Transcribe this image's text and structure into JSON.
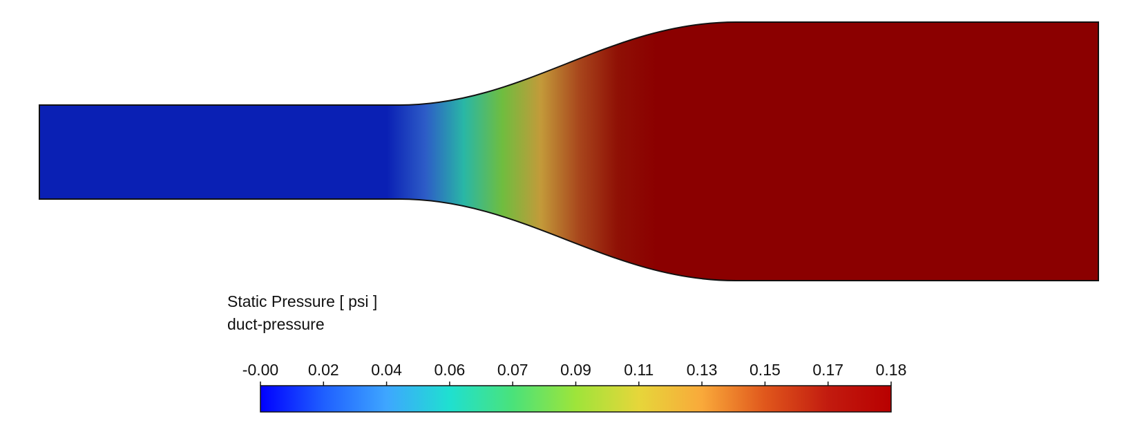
{
  "legend": {
    "title": "Static Pressure [ psi ]",
    "subtitle": "duct-pressure",
    "ticks": [
      "-0.00",
      "0.02",
      "0.04",
      "0.06",
      "0.07",
      "0.09",
      "0.11",
      "0.13",
      "0.15",
      "0.17",
      "0.18"
    ],
    "colormap": [
      "#0000ff",
      "#1f5fff",
      "#3ea6ff",
      "#1fe0d0",
      "#4ae27a",
      "#9ee43a",
      "#e6d63a",
      "#f9a93a",
      "#e0571c",
      "#c21b0f",
      "#b80000"
    ]
  },
  "field": {
    "inlet_color": "#0a20b4",
    "outlet_color": "#8b0000",
    "transition_colors": [
      "#0a20b4",
      "#2d5cc7",
      "#29b7a6",
      "#6fbd3f",
      "#c39a3a",
      "#a8461c",
      "#8f1005",
      "#8b0000"
    ],
    "outline_color": "#111111"
  }
}
